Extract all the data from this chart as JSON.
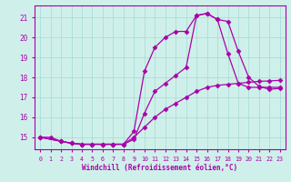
{
  "bg_color": "#cff0ea",
  "grid_color": "#aaddd6",
  "line_color": "#aa00aa",
  "xlabel": "Windchill (Refroidissement éolien,°C)",
  "xlim": [
    -0.5,
    23.5
  ],
  "ylim": [
    14.4,
    21.6
  ],
  "yticks": [
    15,
    16,
    17,
    18,
    19,
    20,
    21
  ],
  "xticks": [
    0,
    1,
    2,
    3,
    4,
    5,
    6,
    7,
    8,
    9,
    10,
    11,
    12,
    13,
    14,
    15,
    16,
    17,
    18,
    19,
    20,
    21,
    22,
    23
  ],
  "line1_x": [
    0,
    1,
    2,
    3,
    4,
    5,
    6,
    7,
    8,
    9,
    10,
    11,
    12,
    13,
    14,
    15,
    16,
    17,
    18,
    19,
    20,
    21,
    22,
    23
  ],
  "line1_y": [
    15.0,
    15.0,
    14.8,
    14.7,
    14.65,
    14.65,
    14.65,
    14.65,
    14.65,
    14.9,
    16.2,
    17.3,
    17.7,
    18.1,
    18.5,
    21.1,
    21.2,
    20.9,
    20.8,
    19.3,
    18.0,
    17.55,
    17.4,
    17.45
  ],
  "line2_x": [
    0,
    2,
    3,
    4,
    5,
    6,
    7,
    8,
    9,
    10,
    11,
    12,
    13,
    14,
    15,
    16,
    17,
    18,
    19,
    20,
    21,
    22,
    23
  ],
  "line2_y": [
    15.0,
    14.8,
    14.7,
    14.65,
    14.65,
    14.65,
    14.65,
    14.65,
    15.3,
    18.3,
    19.5,
    20.0,
    20.3,
    20.3,
    21.1,
    21.2,
    20.9,
    19.2,
    17.7,
    17.5,
    17.5,
    17.5,
    17.5
  ],
  "line3_x": [
    0,
    2,
    3,
    4,
    5,
    6,
    7,
    8,
    9,
    10,
    11,
    12,
    13,
    14,
    15,
    16,
    17,
    18,
    19,
    20,
    21,
    22,
    23
  ],
  "line3_y": [
    15.0,
    14.8,
    14.7,
    14.65,
    14.65,
    14.65,
    14.65,
    14.65,
    15.0,
    15.5,
    16.0,
    16.4,
    16.7,
    17.0,
    17.3,
    17.5,
    17.6,
    17.65,
    17.7,
    17.75,
    17.8,
    17.82,
    17.85
  ]
}
